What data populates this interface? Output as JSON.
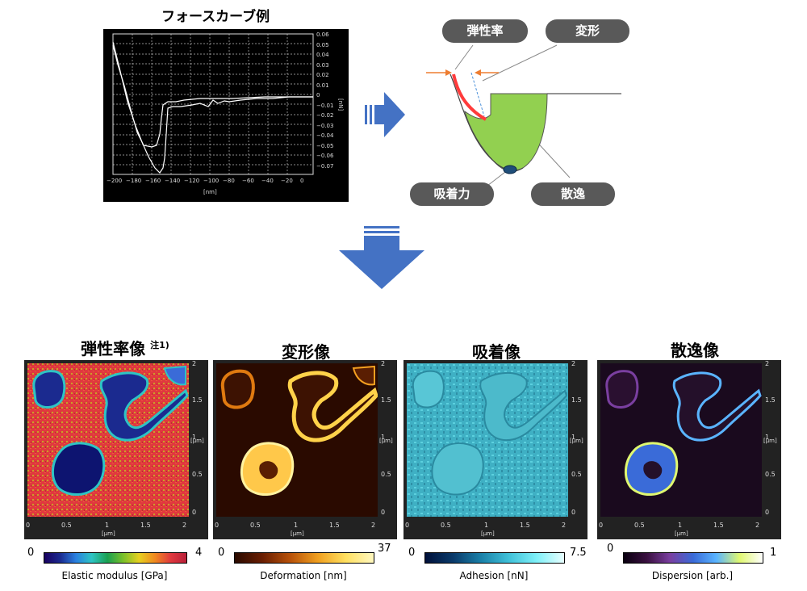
{
  "force_curve": {
    "title": "フォースカーブ例",
    "y_ticks": [
      "0.06",
      "0.05",
      "0.04",
      "0.03",
      "0.02",
      "0.01",
      "0",
      "−0.01",
      "−0.02",
      "−0.03",
      "−0.04",
      "−0.05",
      "−0.06",
      "−0.07"
    ],
    "y_unit": "[nN]",
    "x_ticks": [
      "−200",
      "−180",
      "−160",
      "−140",
      "−120",
      "−100",
      "−80",
      "−60",
      "−40",
      "−20",
      "0"
    ],
    "x_unit": "[nm]"
  },
  "schematic": {
    "labels": {
      "elastic": "弾性率",
      "deformation": "変形",
      "adhesion": "吸着力",
      "dispersion": "散逸"
    }
  },
  "maps": [
    {
      "title": "弾性率像",
      "note": "注1)",
      "colorbar": {
        "min": "0",
        "max": "4",
        "label": "Elastic modulus [GPa]"
      },
      "y_ticks": [
        "2",
        "1.5",
        "1",
        "0.5",
        "0"
      ],
      "y_unit": "[μm]",
      "x_ticks": [
        "0",
        "0.5",
        "1",
        "1.5",
        "2"
      ],
      "x_unit": "[μm]"
    },
    {
      "title": "変形像",
      "note": "",
      "colorbar": {
        "min": "0",
        "max": "37",
        "label": "Deformation [nm]"
      },
      "y_ticks": [
        "2",
        "1.5",
        "1",
        "0.5",
        "0"
      ],
      "y_unit": "[μm]",
      "x_ticks": [
        "0",
        "0.5",
        "1",
        "1.5",
        "2"
      ],
      "x_unit": "[μm]"
    },
    {
      "title": "吸着像",
      "note": "",
      "colorbar": {
        "min": "0",
        "max": "7.5",
        "label": "Adhesion [nN]"
      },
      "y_ticks": [
        "2",
        "1.5",
        "1",
        "0.5",
        "0"
      ],
      "y_unit": "[μm]",
      "x_ticks": [
        "0",
        "0.5",
        "1",
        "1.5",
        "2"
      ],
      "x_unit": "[μm]"
    },
    {
      "title": "散逸像",
      "note": "",
      "colorbar": {
        "min": "0",
        "max": "1",
        "label": "Dispersion [arb.]"
      },
      "y_ticks": [
        "2",
        "1.5",
        "1",
        "0.5",
        "0"
      ],
      "y_unit": "[μm]",
      "x_ticks": [
        "0",
        "0.5",
        "1",
        "1.5",
        "2"
      ],
      "x_unit": "[μm]"
    }
  ],
  "colors": {
    "arrow_blue": "#4472c4",
    "pill_gray": "#595959",
    "tip_green": "#92d050",
    "elastic_red": "#ff3b3b",
    "highlight_orange": "#ed7d31"
  }
}
